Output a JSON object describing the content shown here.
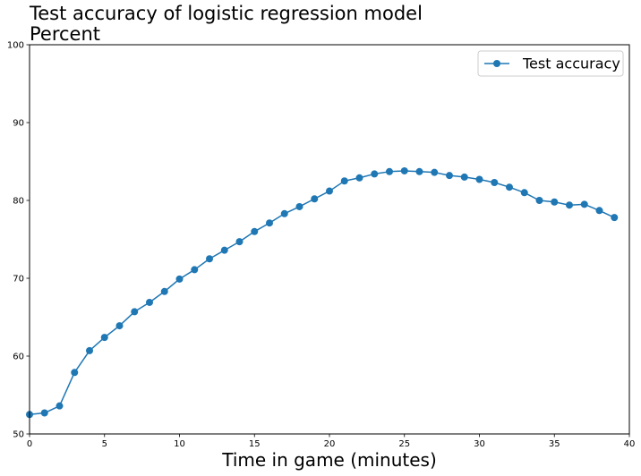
{
  "chart_data": {
    "type": "line",
    "title": "Test accuracy of logistic regression model",
    "subtitle": "Percent",
    "xlabel": "Time in game (minutes)",
    "ylabel": "",
    "xlim": [
      0,
      40
    ],
    "ylim": [
      50,
      100
    ],
    "x_ticks": [
      0,
      5,
      10,
      15,
      20,
      25,
      30,
      35,
      40
    ],
    "y_ticks": [
      50,
      60,
      70,
      80,
      90,
      100
    ],
    "grid": false,
    "legend_position": "top-right",
    "series": [
      {
        "name": "Test accuracy",
        "color": "#1f77b4",
        "marker": "circle",
        "x": [
          0,
          1,
          2,
          3,
          4,
          5,
          6,
          7,
          8,
          9,
          10,
          11,
          12,
          13,
          14,
          15,
          16,
          17,
          18,
          19,
          20,
          21,
          22,
          23,
          24,
          25,
          26,
          27,
          28,
          29,
          30,
          31,
          32,
          33,
          34,
          35,
          36,
          37,
          38,
          39
        ],
        "y": [
          52.5,
          52.7,
          53.6,
          57.9,
          60.7,
          62.4,
          63.9,
          65.7,
          66.9,
          68.3,
          69.9,
          71.1,
          72.5,
          73.6,
          74.7,
          76.0,
          77.1,
          78.3,
          79.2,
          80.2,
          81.2,
          82.5,
          82.9,
          83.4,
          83.7,
          83.8,
          83.7,
          83.6,
          83.2,
          83.0,
          82.7,
          82.3,
          81.7,
          81.0,
          80.0,
          79.8,
          79.4,
          79.5,
          78.7,
          77.8
        ]
      }
    ]
  }
}
